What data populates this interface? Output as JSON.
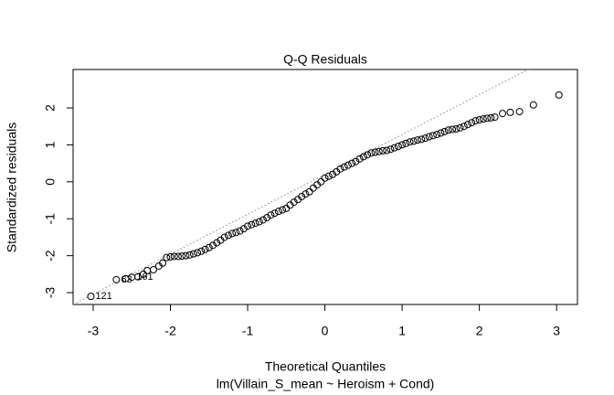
{
  "chart_data": {
    "type": "qq",
    "title": "Q-Q Residuals",
    "x_label": "Theoretical Quantiles",
    "y_label": "Standardized residuals",
    "subtitle": "lm(Villain_S_mean ~ Heroism + Cond)",
    "xlim": [
      -3.26,
      3.27
    ],
    "ylim": [
      -3.32,
      3.04
    ],
    "xticks": [
      -3,
      -2,
      -1,
      0,
      1,
      2,
      3
    ],
    "yticks": [
      -3,
      -2,
      -1,
      0,
      1,
      2
    ],
    "x": [
      -3.03,
      -2.7,
      -2.58,
      -2.5,
      -2.42,
      -2.35,
      -2.3,
      -2.22,
      -2.15,
      -2.1,
      -2.05,
      -2.0,
      -1.95,
      -1.9,
      -1.85,
      -1.8,
      -1.75,
      -1.7,
      -1.65,
      -1.6,
      -1.55,
      -1.5,
      -1.45,
      -1.4,
      -1.35,
      -1.3,
      -1.25,
      -1.2,
      -1.15,
      -1.1,
      -1.05,
      -1.0,
      -0.95,
      -0.9,
      -0.85,
      -0.8,
      -0.75,
      -0.7,
      -0.65,
      -0.6,
      -0.55,
      -0.5,
      -0.45,
      -0.4,
      -0.35,
      -0.3,
      -0.25,
      -0.2,
      -0.15,
      -0.1,
      -0.05,
      0,
      0.05,
      0.1,
      0.15,
      0.2,
      0.25,
      0.3,
      0.35,
      0.4,
      0.45,
      0.5,
      0.55,
      0.6,
      0.65,
      0.7,
      0.75,
      0.8,
      0.85,
      0.9,
      0.95,
      1.0,
      1.05,
      1.1,
      1.15,
      1.2,
      1.25,
      1.3,
      1.35,
      1.4,
      1.45,
      1.5,
      1.55,
      1.6,
      1.65,
      1.7,
      1.75,
      1.8,
      1.85,
      1.9,
      1.95,
      2.0,
      2.05,
      2.1,
      2.15,
      2.2,
      2.3,
      2.4,
      2.52,
      2.7,
      3.03
    ],
    "y": [
      -3.1,
      -2.65,
      -2.62,
      -2.58,
      -2.57,
      -2.5,
      -2.4,
      -2.38,
      -2.28,
      -2.2,
      -2.05,
      -2.03,
      -2.02,
      -2.02,
      -2.01,
      -2.0,
      -1.98,
      -1.95,
      -1.92,
      -1.88,
      -1.83,
      -1.78,
      -1.72,
      -1.65,
      -1.58,
      -1.5,
      -1.45,
      -1.4,
      -1.37,
      -1.33,
      -1.27,
      -1.2,
      -1.16,
      -1.12,
      -1.08,
      -1.03,
      -0.97,
      -0.9,
      -0.85,
      -0.8,
      -0.76,
      -0.72,
      -0.63,
      -0.55,
      -0.48,
      -0.4,
      -0.33,
      -0.27,
      -0.17,
      -0.08,
      0.0,
      0.1,
      0.15,
      0.2,
      0.27,
      0.35,
      0.4,
      0.45,
      0.5,
      0.55,
      0.62,
      0.68,
      0.73,
      0.78,
      0.8,
      0.82,
      0.84,
      0.85,
      0.88,
      0.92,
      0.96,
      1.0,
      1.04,
      1.08,
      1.1,
      1.13,
      1.15,
      1.18,
      1.22,
      1.25,
      1.28,
      1.32,
      1.36,
      1.4,
      1.42,
      1.43,
      1.46,
      1.5,
      1.55,
      1.6,
      1.65,
      1.68,
      1.7,
      1.72,
      1.73,
      1.75,
      1.85,
      1.88,
      1.9,
      2.08,
      2.35
    ],
    "qq_line": {
      "intercept": 0.2,
      "slope": 1.08
    },
    "point_labels": [
      {
        "index": 0,
        "label": "121"
      },
      {
        "index": 1,
        "label": "63"
      },
      {
        "index": 3,
        "label": "161"
      }
    ]
  }
}
